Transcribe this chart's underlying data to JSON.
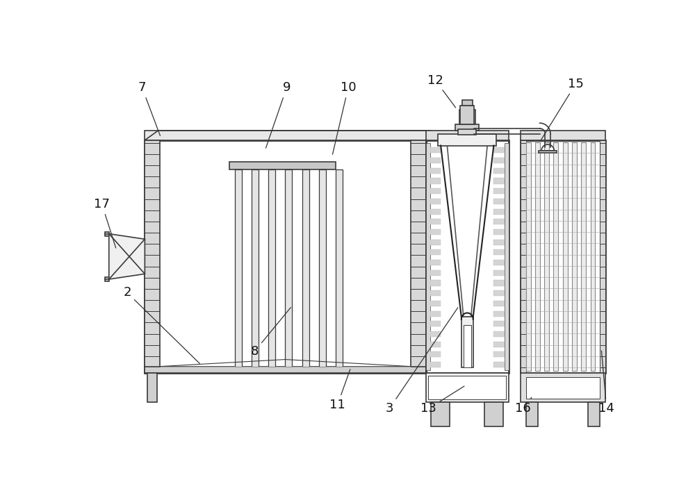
{
  "bg_color": "#ffffff",
  "line_color": "#3a3a3a",
  "lw": 1.2,
  "tlw": 2.0,
  "fig_w": 10.0,
  "fig_h": 6.94
}
